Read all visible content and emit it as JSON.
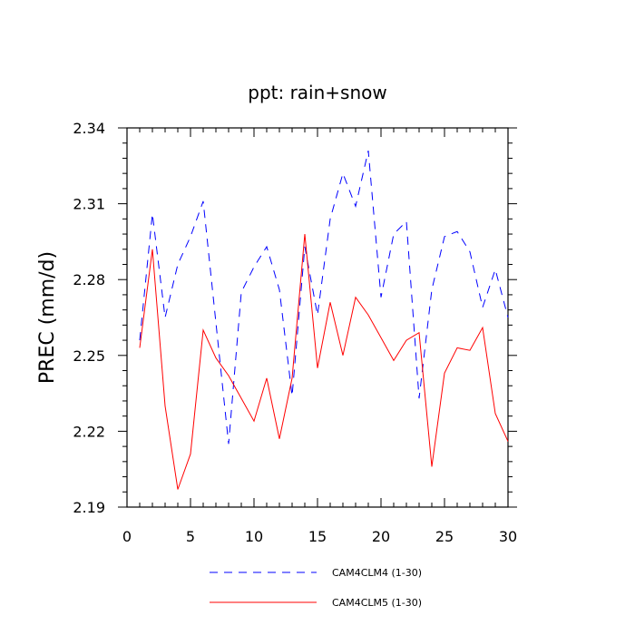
{
  "chart_data": {
    "type": "line",
    "title": "ppt: rain+snow",
    "xlabel": "",
    "ylabel": "PREC  (mm/d)",
    "xlim": [
      0,
      30
    ],
    "ylim": [
      2.19,
      2.34
    ],
    "x_ticks": [
      0,
      5,
      10,
      15,
      20,
      25,
      30
    ],
    "x_tick_labels": [
      "0",
      "5",
      "10",
      "15",
      "20",
      "25",
      "30"
    ],
    "y_ticks": [
      2.19,
      2.22,
      2.25,
      2.28,
      2.31,
      2.34
    ],
    "y_tick_labels": [
      "2.19",
      "2.22",
      "2.25",
      "2.28",
      "2.31",
      "2.34"
    ],
    "grid": false,
    "legend_position": "bottom",
    "x": [
      1,
      2,
      3,
      4,
      5,
      6,
      7,
      8,
      9,
      10,
      11,
      12,
      13,
      14,
      15,
      16,
      17,
      18,
      19,
      20,
      21,
      22,
      23,
      24,
      25,
      26,
      27,
      28,
      29,
      30
    ],
    "series": [
      {
        "name": "CAM4CLM4 (1-30)",
        "color": "#0000ff",
        "dash": "dashed",
        "values": [
          2.256,
          2.306,
          2.265,
          2.286,
          2.297,
          2.311,
          2.263,
          2.215,
          2.275,
          2.285,
          2.293,
          2.276,
          2.234,
          2.293,
          2.266,
          2.304,
          2.322,
          2.309,
          2.331,
          2.273,
          2.298,
          2.303,
          2.233,
          2.276,
          2.297,
          2.299,
          2.291,
          2.269,
          2.284,
          2.265
        ]
      },
      {
        "name": "CAM4CLM5 (1-30)",
        "color": "#ff0000",
        "dash": "solid",
        "values": [
          2.253,
          2.292,
          2.23,
          2.197,
          2.211,
          2.26,
          2.249,
          2.242,
          2.233,
          2.224,
          2.241,
          2.217,
          2.241,
          2.298,
          2.245,
          2.271,
          2.25,
          2.273,
          2.266,
          2.257,
          2.248,
          2.256,
          2.259,
          2.206,
          2.243,
          2.253,
          2.252,
          2.261,
          2.227,
          2.216
        ]
      }
    ]
  }
}
